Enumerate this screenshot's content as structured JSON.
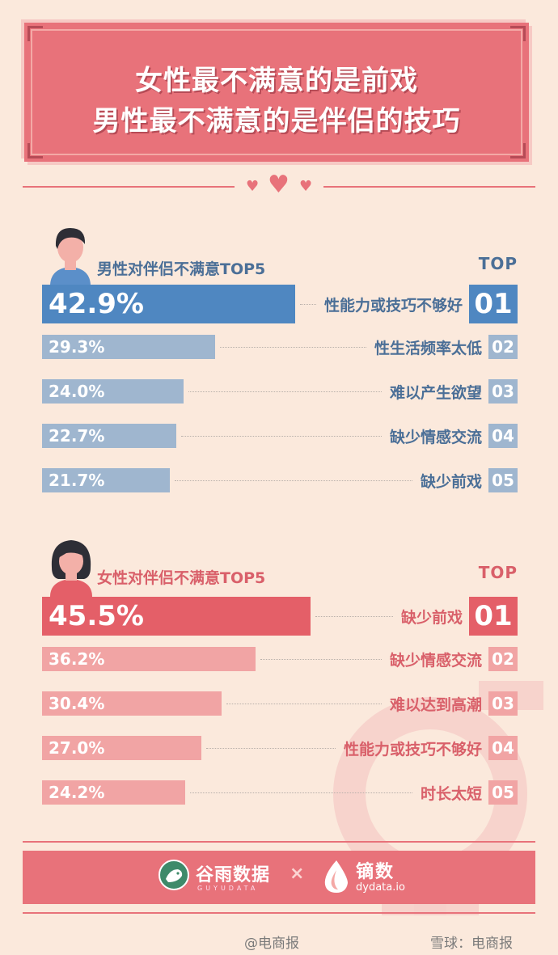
{
  "title": {
    "line1": "女性最不满意的是前戏",
    "line2": "男性最不满意的是伴侣的技巧"
  },
  "colors": {
    "background": "#fbe9dc",
    "accent_pink": "#e8727a",
    "male_primary": "#4f87c1",
    "male_secondary": "#9fb6cf",
    "male_text": "#4b6f97",
    "female_primary": "#e45f68",
    "female_secondary": "#f1a4a4",
    "female_text": "#d9606a"
  },
  "chart_data": [
    {
      "type": "bar",
      "title": "男性对伴侣不满意TOP5",
      "top_label": "TOP",
      "categories": [
        "性能力或技巧不够好",
        "性生活频率太低",
        "难以产生欲望",
        "缺少情感交流",
        "缺少前戏"
      ],
      "values": [
        42.9,
        29.3,
        24.0,
        22.7,
        21.7
      ],
      "value_labels": [
        "42.9%",
        "29.3%",
        "24.0%",
        "22.7%",
        "21.7%"
      ],
      "ranks": [
        "01",
        "02",
        "03",
        "04",
        "05"
      ],
      "xlim": [
        0,
        100
      ]
    },
    {
      "type": "bar",
      "title": "女性对伴侣不满意TOP5",
      "top_label": "TOP",
      "categories": [
        "缺少前戏",
        "缺少情感交流",
        "难以达到高潮",
        "性能力或技巧不够好",
        "时长太短"
      ],
      "values": [
        45.5,
        36.2,
        30.4,
        27.0,
        24.2
      ],
      "value_labels": [
        "45.5%",
        "36.2%",
        "30.4%",
        "27.0%",
        "24.2%"
      ],
      "ranks": [
        "01",
        "02",
        "03",
        "04",
        "05"
      ],
      "xlim": [
        0,
        100
      ]
    }
  ],
  "footer": {
    "logo_a_name": "谷雨数据",
    "logo_a_sub": "GUYUDATA",
    "times": "×",
    "logo_b_name": "镝数",
    "logo_b_sub": "dydata.io"
  },
  "watermarks": {
    "left": "@电商报",
    "right": "雪球：电商报"
  }
}
